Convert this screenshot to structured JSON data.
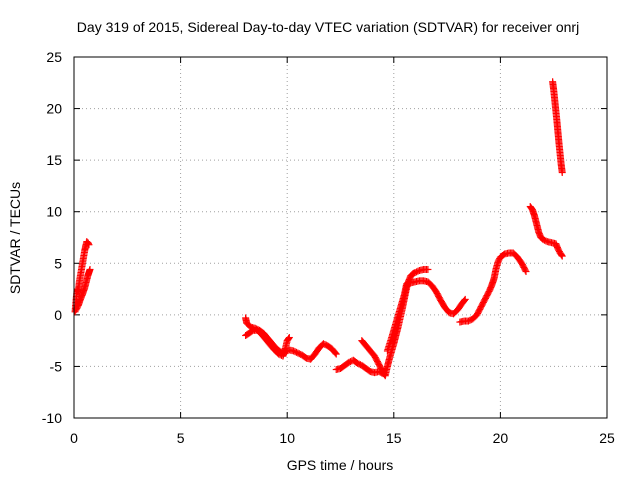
{
  "chart_data": {
    "type": "scatter",
    "title": "Day 319 of 2015, Sidereal Day-to-day VTEC variation (SDTVAR) for receiver onrj",
    "xlabel": "GPS time / hours",
    "ylabel": "SDTVAR / TECUs",
    "xlim": [
      0,
      25
    ],
    "ylim": [
      -10,
      25
    ],
    "xticks": [
      "0",
      "5",
      "10",
      "15",
      "20",
      "25"
    ],
    "yticks": [
      "-10",
      "-5",
      "0",
      "5",
      "10",
      "15",
      "20",
      "25"
    ],
    "grid": true,
    "marker": "plus",
    "color": "#ff0000",
    "series": [
      {
        "name": "SDTVAR",
        "segments": [
          [
            [
              0.05,
              0.3
            ],
            [
              0.1,
              1.5
            ],
            [
              0.15,
              2.5
            ],
            [
              0.2,
              2.2
            ],
            [
              0.25,
              3.2
            ],
            [
              0.3,
              3.8
            ],
            [
              0.35,
              4.4
            ],
            [
              0.4,
              5.0
            ],
            [
              0.45,
              5.6
            ],
            [
              0.5,
              6.2
            ],
            [
              0.55,
              6.7
            ],
            [
              0.6,
              7.1
            ],
            [
              0.65,
              7.0
            ],
            [
              0.7,
              6.8
            ]
          ],
          [
            [
              0.1,
              0.5
            ],
            [
              0.2,
              0.9
            ],
            [
              0.3,
              1.5
            ],
            [
              0.4,
              2.0
            ],
            [
              0.5,
              2.6
            ],
            [
              0.55,
              3.0
            ],
            [
              0.6,
              3.4
            ],
            [
              0.65,
              3.8
            ],
            [
              0.7,
              4.1
            ],
            [
              0.75,
              4.4
            ]
          ],
          [
            [
              8.05,
              -0.3
            ],
            [
              8.1,
              -0.8
            ],
            [
              8.2,
              -1.0
            ],
            [
              8.3,
              -1.2
            ],
            [
              8.5,
              -1.3
            ],
            [
              8.7,
              -1.5
            ],
            [
              8.9,
              -1.8
            ],
            [
              9.1,
              -2.3
            ],
            [
              9.3,
              -2.8
            ],
            [
              9.5,
              -3.3
            ],
            [
              9.7,
              -3.6
            ],
            [
              9.9,
              -3.6
            ],
            [
              10.1,
              -3.4
            ],
            [
              10.3,
              -3.5
            ],
            [
              10.5,
              -3.7
            ],
            [
              10.7,
              -3.9
            ],
            [
              10.9,
              -4.2
            ],
            [
              11.1,
              -4.3
            ],
            [
              11.3,
              -3.8
            ],
            [
              11.5,
              -3.2
            ],
            [
              11.7,
              -2.8
            ],
            [
              11.9,
              -3.0
            ],
            [
              12.1,
              -3.3
            ],
            [
              12.3,
              -3.8
            ]
          ],
          [
            [
              8.05,
              -2.0
            ],
            [
              8.2,
              -1.8
            ],
            [
              8.4,
              -1.5
            ],
            [
              8.6,
              -1.5
            ],
            [
              8.8,
              -1.9
            ],
            [
              9.0,
              -2.4
            ],
            [
              9.2,
              -2.9
            ],
            [
              9.4,
              -3.4
            ],
            [
              9.6,
              -3.8
            ],
            [
              9.8,
              -4.0
            ],
            [
              9.9,
              -3.4
            ],
            [
              10.0,
              -2.5
            ],
            [
              10.1,
              -2.2
            ]
          ],
          [
            [
              12.3,
              -5.3
            ],
            [
              12.5,
              -5.2
            ],
            [
              12.7,
              -4.9
            ],
            [
              12.9,
              -4.6
            ],
            [
              13.1,
              -4.4
            ],
            [
              13.3,
              -4.7
            ],
            [
              13.5,
              -4.9
            ],
            [
              13.7,
              -5.2
            ],
            [
              13.9,
              -5.5
            ],
            [
              14.1,
              -5.6
            ],
            [
              14.3,
              -5.5
            ],
            [
              14.5,
              -5.7
            ],
            [
              14.6,
              -5.3
            ]
          ],
          [
            [
              13.5,
              -2.5
            ],
            [
              13.7,
              -3.0
            ],
            [
              13.9,
              -3.5
            ],
            [
              14.1,
              -4.0
            ],
            [
              14.3,
              -4.8
            ],
            [
              14.5,
              -5.6
            ],
            [
              14.6,
              -5.9
            ],
            [
              14.7,
              -5.0
            ],
            [
              14.8,
              -4.2
            ],
            [
              14.9,
              -3.5
            ],
            [
              15.0,
              -2.8
            ],
            [
              15.1,
              -2.0
            ],
            [
              15.2,
              -1.2
            ],
            [
              15.3,
              -0.3
            ],
            [
              15.4,
              0.6
            ],
            [
              15.5,
              1.6
            ],
            [
              15.6,
              2.6
            ],
            [
              15.7,
              3.3
            ],
            [
              15.8,
              3.8
            ],
            [
              15.9,
              4.0
            ],
            [
              16.0,
              4.1
            ],
            [
              16.2,
              4.3
            ],
            [
              16.4,
              4.4
            ],
            [
              16.6,
              4.4
            ]
          ],
          [
            [
              14.7,
              -3.5
            ],
            [
              14.9,
              -2.2
            ],
            [
              15.1,
              -0.8
            ],
            [
              15.3,
              0.6
            ],
            [
              15.5,
              2.0
            ],
            [
              15.6,
              3.0
            ],
            [
              15.7,
              3.2
            ],
            [
              15.8,
              3.1
            ],
            [
              16.0,
              3.2
            ],
            [
              16.2,
              3.3
            ],
            [
              16.4,
              3.3
            ],
            [
              16.6,
              3.2
            ],
            [
              16.8,
              2.8
            ],
            [
              17.0,
              2.2
            ],
            [
              17.2,
              1.4
            ],
            [
              17.4,
              0.7
            ],
            [
              17.6,
              0.2
            ],
            [
              17.8,
              0.1
            ],
            [
              18.0,
              0.5
            ],
            [
              18.2,
              1.1
            ],
            [
              18.35,
              1.5
            ]
          ],
          [
            [
              18.1,
              -0.7
            ],
            [
              18.3,
              -0.6
            ],
            [
              18.5,
              -0.6
            ],
            [
              18.7,
              -0.4
            ],
            [
              18.9,
              0.0
            ],
            [
              19.1,
              0.8
            ],
            [
              19.3,
              1.6
            ],
            [
              19.5,
              2.4
            ],
            [
              19.6,
              2.9
            ],
            [
              19.7,
              3.5
            ],
            [
              19.8,
              4.5
            ],
            [
              19.9,
              5.2
            ],
            [
              20.0,
              5.6
            ],
            [
              20.2,
              5.9
            ],
            [
              20.4,
              6.0
            ],
            [
              20.6,
              6.0
            ],
            [
              20.8,
              5.6
            ],
            [
              21.0,
              5.0
            ],
            [
              21.2,
              4.2
            ]
          ],
          [
            [
              21.4,
              10.5
            ],
            [
              21.5,
              10.2
            ],
            [
              21.6,
              9.6
            ],
            [
              21.7,
              8.8
            ],
            [
              21.8,
              8.0
            ],
            [
              21.9,
              7.5
            ],
            [
              22.0,
              7.3
            ],
            [
              22.2,
              7.1
            ],
            [
              22.4,
              7.0
            ],
            [
              22.6,
              6.9
            ],
            [
              22.7,
              6.4
            ],
            [
              22.8,
              6.0
            ],
            [
              22.9,
              5.7
            ]
          ],
          [
            [
              22.45,
              22.6
            ],
            [
              22.5,
              21.8
            ],
            [
              22.55,
              20.8
            ],
            [
              22.6,
              19.8
            ],
            [
              22.65,
              18.8
            ],
            [
              22.7,
              17.7
            ],
            [
              22.75,
              16.6
            ],
            [
              22.8,
              15.6
            ],
            [
              22.85,
              14.6
            ],
            [
              22.9,
              13.8
            ]
          ]
        ]
      }
    ]
  }
}
